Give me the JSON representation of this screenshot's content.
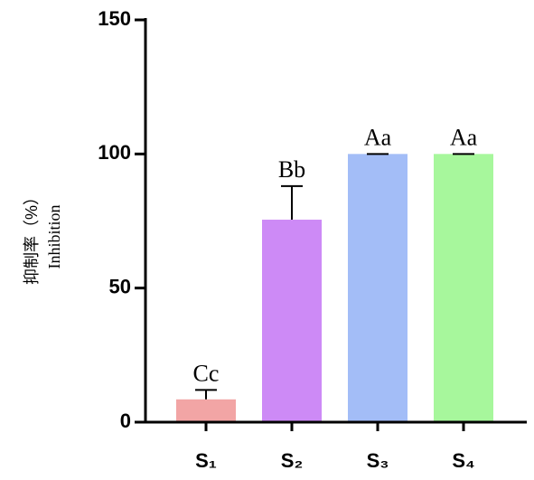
{
  "chart_data": {
    "type": "bar",
    "y_label_lines": [
      "抑制率（%）",
      "Inhibition"
    ],
    "categories": [
      "S₁",
      "S₂",
      "S₃",
      "S₄"
    ],
    "values": [
      8.5,
      75.5,
      100,
      100
    ],
    "errors": [
      3.5,
      12.5,
      0,
      0
    ],
    "annotations": [
      "Cc",
      "Bb",
      "Aa",
      "Aa"
    ],
    "colors": [
      "#f2a5a5",
      "#cd8af6",
      "#a3bdf7",
      "#a7f79c"
    ],
    "ylim": [
      0,
      150
    ],
    "yticks": [
      0,
      50,
      100,
      150
    ],
    "grid": false
  }
}
